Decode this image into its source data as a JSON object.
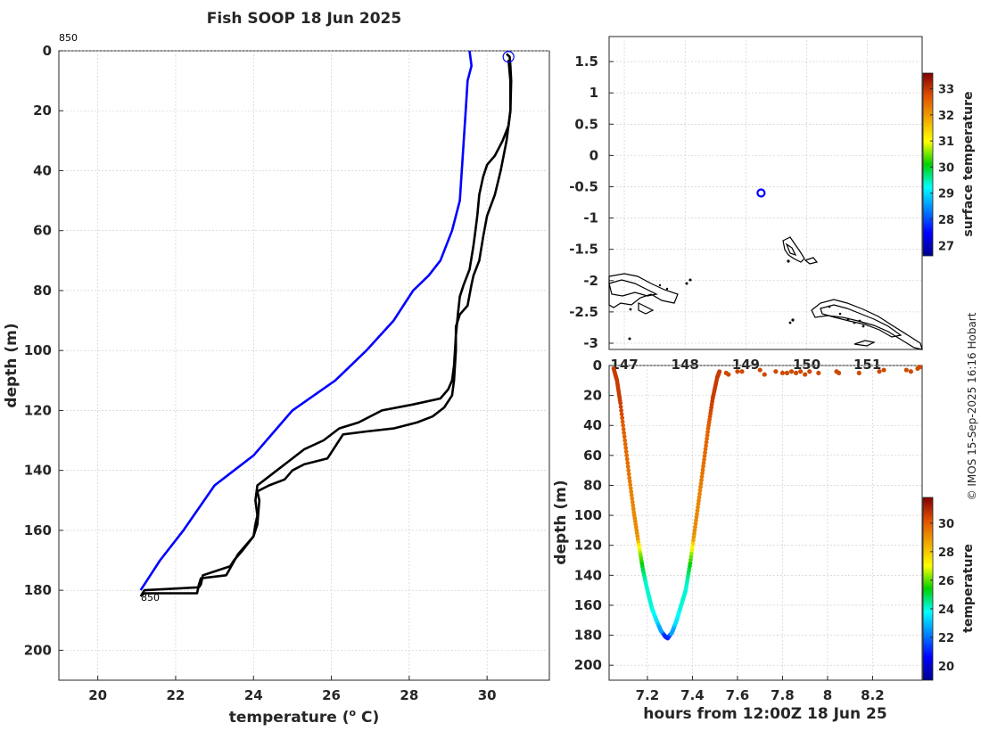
{
  "title": "Fish SOOP 18 Jun 2025",
  "credit": "© IMOS 15-Sep-2025 16:16 Hobart",
  "chart_data": [
    {
      "type": "line",
      "name": "profile",
      "xlabel": "temperature (",
      "xlabel_sup": "o",
      "xlabel_unit": " C)",
      "ylabel": "depth (m)",
      "xlim": [
        19,
        31.6
      ],
      "ylim": [
        0,
        210
      ],
      "yreversed": true,
      "xticks": [
        20,
        22,
        24,
        26,
        28,
        30
      ],
      "yticks": [
        0,
        20,
        40,
        60,
        80,
        100,
        120,
        140,
        160,
        180,
        200
      ],
      "annotation_top": "850",
      "annotation_bottom": "850",
      "marker": {
        "x": 30.55,
        "y": 2,
        "color": "#0000ff"
      },
      "series": [
        {
          "name": "climatology",
          "color": "#0000ff",
          "x": [
            29.55,
            29.6,
            29.5,
            29.45,
            29.4,
            29.35,
            29.3,
            29.1,
            28.8,
            28.5,
            28.1,
            27.6,
            26.9,
            26.1,
            25.0,
            24.0,
            23.0,
            22.2,
            21.6,
            21.1
          ],
          "y": [
            0,
            5,
            10,
            20,
            30,
            40,
            50,
            60,
            70,
            75,
            80,
            90,
            100,
            110,
            120,
            135,
            145,
            160,
            170,
            180
          ]
        },
        {
          "name": "down-cast",
          "color": "#000000",
          "x": [
            30.5,
            30.58,
            30.6,
            30.62,
            30.6,
            30.55,
            30.4,
            30.2,
            30.0,
            29.9,
            29.8,
            29.75,
            29.7,
            29.65,
            29.55,
            29.4,
            29.3,
            29.25,
            29.2,
            29.15,
            29.1,
            29.0,
            28.8,
            28.1,
            27.3,
            26.7,
            26.2,
            25.8,
            25.3,
            24.9,
            24.6,
            24.1,
            24.05,
            24.1,
            24.05,
            24.0,
            23.7,
            23.5,
            23.4,
            22.7,
            22.65,
            22.6,
            21.2,
            21.1
          ],
          "y": [
            1,
            2,
            5,
            10,
            20,
            25,
            30,
            35,
            38,
            42,
            48,
            55,
            60,
            65,
            73,
            78,
            82,
            88,
            95,
            105,
            110,
            113,
            116,
            118,
            120,
            124,
            126,
            130,
            133,
            137,
            140,
            145,
            150,
            155,
            158,
            162,
            167,
            170,
            172,
            175,
            178,
            179,
            180,
            182
          ]
        },
        {
          "name": "up-cast",
          "color": "#000000",
          "x": [
            21.1,
            21.2,
            22.55,
            22.6,
            22.65,
            23.3,
            23.6,
            23.8,
            24.0,
            24.1,
            24.15,
            24.1,
            24.4,
            24.8,
            25.0,
            25.3,
            25.9,
            26.1,
            26.3,
            26.9,
            27.6,
            28.2,
            28.6,
            28.9,
            29.1,
            29.15,
            29.2,
            29.2,
            29.3,
            29.5,
            29.6,
            29.65,
            29.8,
            29.9,
            30.0,
            30.2,
            30.35,
            30.5,
            30.6,
            30.6,
            30.55
          ],
          "y": [
            182,
            181,
            181,
            178,
            176,
            175,
            168,
            165,
            162,
            158,
            150,
            147,
            145,
            143,
            140,
            138,
            136,
            132,
            128,
            127,
            126,
            124,
            122,
            119,
            115,
            110,
            100,
            92,
            88,
            85,
            78,
            75,
            70,
            62,
            55,
            48,
            40,
            30,
            20,
            10,
            3
          ]
        }
      ]
    },
    {
      "type": "scatter",
      "name": "map",
      "xlim": [
        146.75,
        151.9
      ],
      "ylim": [
        -3.1,
        1.9
      ],
      "yticks": [
        1.5,
        1,
        0.5,
        0,
        -0.5,
        -1,
        -1.5,
        -2,
        -2.5,
        -3
      ],
      "ytick_labels": [
        "1.5",
        "1",
        "0.5",
        "0",
        "-0.5",
        "-1",
        "-1.5",
        "-2",
        "-2.5",
        "-3"
      ],
      "xticks": [
        147,
        148,
        149,
        150,
        151
      ],
      "xtick_labels": [
        "147",
        "148",
        "149",
        "150",
        "151"
      ],
      "station": {
        "lon": 149.25,
        "lat": -0.6,
        "color": "#0000ff"
      },
      "colorbar": {
        "label": "surface temperature",
        "range": [
          26.6,
          33.6
        ],
        "ticks": [
          27,
          28,
          29,
          30,
          31,
          32,
          33
        ]
      }
    },
    {
      "type": "scatter",
      "name": "time-depth",
      "xlabel": "hours from 12:00Z 18 Jun 25",
      "ylabel": "depth (m)",
      "xlim": [
        7.03,
        8.42
      ],
      "ylim": [
        0,
        210
      ],
      "yreversed": true,
      "xticks": [
        7.2,
        7.4,
        7.6,
        7.8,
        8,
        8.2
      ],
      "xtick_labels": [
        "7.2",
        "7.4",
        "7.6",
        "7.8",
        "8",
        "8.2"
      ],
      "yticks": [
        0,
        20,
        40,
        60,
        80,
        100,
        120,
        140,
        160,
        180,
        200
      ],
      "descent": {
        "x": [
          7.05,
          7.065,
          7.08,
          7.1,
          7.12,
          7.14,
          7.16,
          7.18,
          7.2,
          7.22,
          7.24,
          7.26,
          7.28,
          7.29
        ],
        "depth": [
          2,
          10,
          25,
          50,
          75,
          98,
          118,
          136,
          150,
          162,
          170,
          177,
          181,
          182
        ]
      },
      "ascent": {
        "x": [
          7.29,
          7.31,
          7.33,
          7.35,
          7.37,
          7.39,
          7.41,
          7.43,
          7.45,
          7.47,
          7.49,
          7.51,
          7.52
        ],
        "depth": [
          182,
          178,
          170,
          160,
          150,
          132,
          110,
          88,
          65,
          42,
          22,
          8,
          4
        ]
      },
      "surface": {
        "x": [
          7.55,
          7.56,
          7.6,
          7.62,
          7.7,
          7.72,
          7.77,
          7.8,
          7.82,
          7.84,
          7.86,
          7.88,
          7.9,
          7.92,
          7.96,
          8.04,
          8.05,
          8.14,
          8.23,
          8.25,
          8.35,
          8.37,
          8.4,
          8.41
        ],
        "depth": [
          5,
          6,
          4,
          4,
          3,
          6,
          4,
          5,
          5,
          4,
          5,
          4,
          6,
          4,
          5,
          4,
          5,
          5,
          4,
          3,
          3,
          4,
          2,
          1
        ]
      },
      "colorbar": {
        "label": "temperature",
        "range": [
          19,
          31.8
        ],
        "ticks": [
          20,
          22,
          24,
          26,
          28,
          30
        ]
      }
    }
  ]
}
